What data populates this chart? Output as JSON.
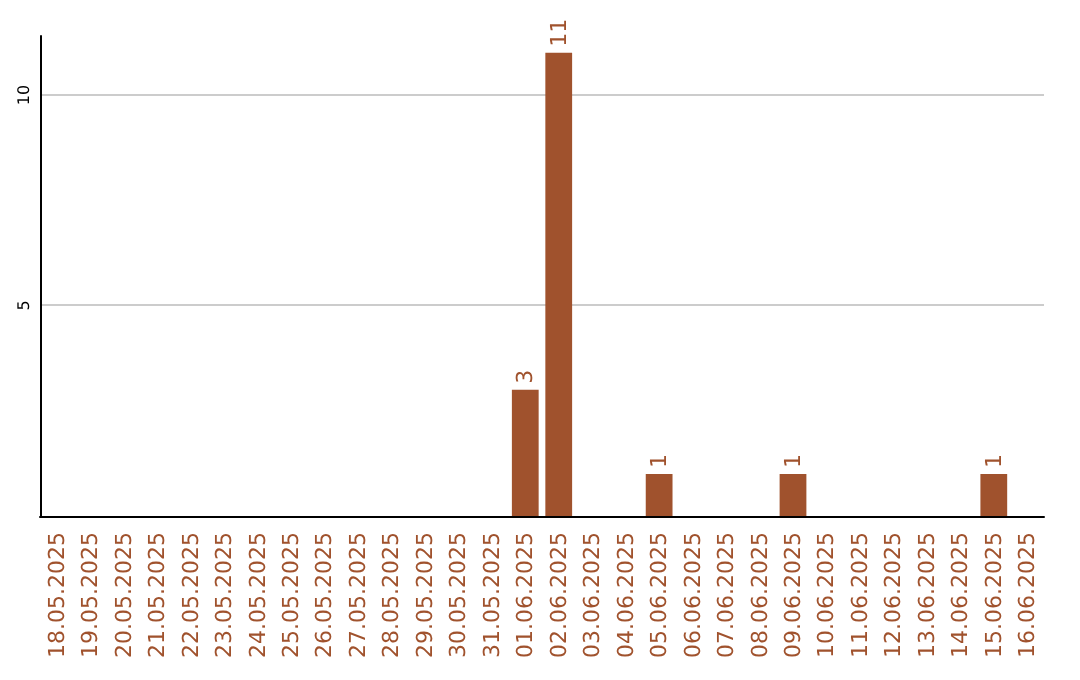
{
  "chart_data": {
    "type": "bar",
    "categories": [
      "18.05.2025",
      "19.05.2025",
      "20.05.2025",
      "21.05.2025",
      "22.05.2025",
      "23.05.2025",
      "24.05.2025",
      "25.05.2025",
      "26.05.2025",
      "27.05.2025",
      "28.05.2025",
      "29.05.2025",
      "30.05.2025",
      "31.05.2025",
      "01.06.2025",
      "02.06.2025",
      "03.06.2025",
      "04.06.2025",
      "05.06.2025",
      "06.06.2025",
      "07.06.2025",
      "08.06.2025",
      "09.06.2025",
      "10.06.2025",
      "11.06.2025",
      "12.06.2025",
      "13.06.2025",
      "14.06.2025",
      "15.06.2025",
      "16.06.2025"
    ],
    "values": [
      0,
      0,
      0,
      0,
      0,
      0,
      0,
      0,
      0,
      0,
      0,
      0,
      0,
      0,
      3,
      11,
      0,
      0,
      1,
      0,
      0,
      0,
      1,
      0,
      0,
      0,
      0,
      0,
      1,
      0
    ],
    "value_labels": [
      null,
      null,
      null,
      null,
      null,
      null,
      null,
      null,
      null,
      null,
      null,
      null,
      null,
      null,
      "3",
      "11",
      null,
      null,
      "1",
      null,
      null,
      null,
      "1",
      null,
      null,
      null,
      null,
      null,
      "1",
      null
    ],
    "color": "#a0522d",
    "ylim": [
      0,
      11.4
    ],
    "yticks": [
      5,
      10
    ],
    "grid": "y"
  }
}
